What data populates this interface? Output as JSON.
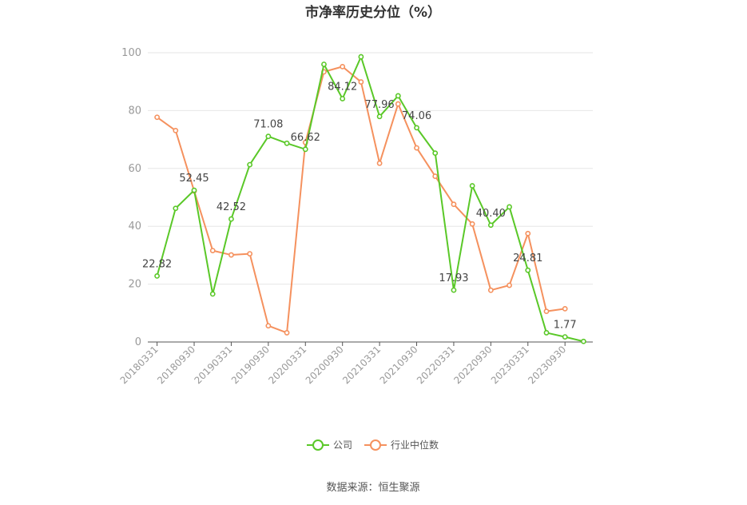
{
  "chart_data": {
    "type": "line",
    "title": "市净率历史分位（%）",
    "source": "数据来源：恒生聚源",
    "ylim": [
      0,
      100
    ],
    "yticks": [
      0,
      20,
      40,
      60,
      80,
      100
    ],
    "grid": true,
    "legend_position": "bottom",
    "x": [
      "20180331",
      "20180630",
      "20180930",
      "20181231",
      "20190331",
      "20190630",
      "20190930",
      "20191231",
      "20200331",
      "20200630",
      "20200930",
      "20201231",
      "20210331",
      "20210630",
      "20210930",
      "20211231",
      "20220331",
      "20220630",
      "20220930",
      "20221231",
      "20230331",
      "20230630",
      "20230930",
      "20231231"
    ],
    "xtick_labels": [
      "20180331",
      "20180930",
      "20190331",
      "20190930",
      "20200331",
      "20200930",
      "20210331",
      "20210930",
      "20220331",
      "20220930",
      "20230331",
      "20230930"
    ],
    "series": [
      {
        "name": "公司",
        "color": "#5ac828",
        "values": [
          22.82,
          46.2,
          52.45,
          16.6,
          42.52,
          61.3,
          71.08,
          68.7,
          66.62,
          96.0,
          84.12,
          98.6,
          77.96,
          85.1,
          74.06,
          65.3,
          17.93,
          54.0,
          40.4,
          46.7,
          24.81,
          3.2,
          1.77,
          0.2
        ],
        "labels": {
          "0": "22.82",
          "2": "52.45",
          "4": "42.52",
          "6": "71.08",
          "8": "66.62",
          "10": "84.12",
          "12": "77.96",
          "14": "74.06",
          "16": "17.93",
          "18": "40.40",
          "20": "24.81",
          "22": "1.77"
        }
      },
      {
        "name": "行业中位数",
        "color": "#f5915e",
        "values": [
          77.7,
          73.1,
          52.2,
          31.6,
          30.1,
          30.5,
          5.6,
          3.2,
          69.0,
          93.4,
          95.2,
          89.9,
          61.8,
          82.3,
          67.1,
          57.3,
          47.6,
          40.8,
          17.9,
          19.6,
          37.5,
          10.6,
          11.5,
          null
        ]
      }
    ]
  }
}
